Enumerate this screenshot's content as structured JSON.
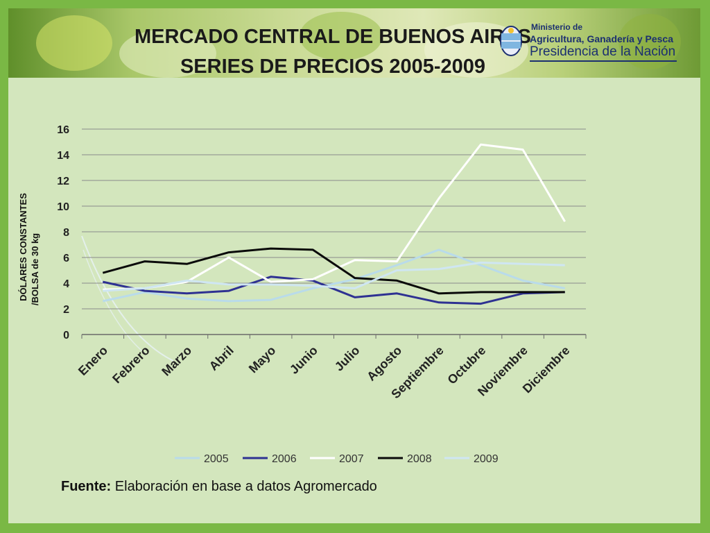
{
  "slide": {
    "title_line1": "MERCADO CENTRAL DE BUENOS AIRES",
    "title_line2": "SERIES DE PRECIOS  2005-2009",
    "logo": {
      "line1": "Ministerio de",
      "line2": "Agricultura, Ganadería y Pesca",
      "line3": "Presidencia de la Nación"
    },
    "source_label": "Fuente:",
    "source_text": "Elaboración en base a datos Agromercado"
  },
  "colors": {
    "background_frame": "#7ab845",
    "panel": "#d3e6bd",
    "gridline": "#8a8a8a"
  },
  "chart_data": {
    "type": "line",
    "title": "",
    "ylabel": "DÓLARES CONSTANTES /BOLSA de 30 kg",
    "xlabel": "",
    "ylim": [
      0,
      16
    ],
    "yticks": [
      0,
      2,
      4,
      6,
      8,
      10,
      12,
      14,
      16
    ],
    "grid": true,
    "legend_position": "bottom",
    "categories": [
      "Enero",
      "Febrero",
      "Marzo",
      "Abril",
      "Mayo",
      "Junio",
      "Julio",
      "Agosto",
      "Septiembre",
      "Octubre",
      "Noviembre",
      "Diciembre"
    ],
    "series": [
      {
        "name": "2005",
        "color": "#b9dbea",
        "values": [
          2.6,
          3.3,
          2.8,
          2.6,
          2.7,
          3.6,
          4.3,
          5.4,
          6.6,
          5.4,
          4.2,
          3.6
        ]
      },
      {
        "name": "2006",
        "color": "#2e3192",
        "values": [
          4.1,
          3.4,
          3.2,
          3.4,
          4.5,
          4.2,
          2.9,
          3.2,
          2.5,
          2.4,
          3.2,
          3.3
        ]
      },
      {
        "name": "2007",
        "color": "#ffffff",
        "values": [
          3.5,
          3.6,
          4.1,
          6.0,
          4.1,
          4.3,
          5.8,
          5.7,
          10.6,
          14.8,
          14.4,
          8.8
        ]
      },
      {
        "name": "2008",
        "color": "#0a0a0a",
        "values": [
          4.8,
          5.7,
          5.5,
          6.4,
          6.7,
          6.6,
          4.4,
          4.2,
          3.2,
          3.3,
          3.3,
          3.3
        ]
      },
      {
        "name": "2009",
        "color": "#cfe6f2",
        "values": [
          3.4,
          3.6,
          4.2,
          3.9,
          3.9,
          3.8,
          3.6,
          5.0,
          5.1,
          5.6,
          5.5,
          5.4
        ]
      }
    ]
  }
}
